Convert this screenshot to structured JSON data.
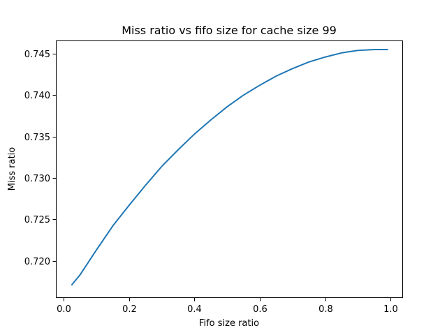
{
  "chart_data": {
    "type": "line",
    "title": "Miss ratio vs fifo size for cache size 99",
    "xlabel": "Fifo size ratio",
    "ylabel": "Miss ratio",
    "xlim": [
      -0.024,
      1.038
    ],
    "ylim": [
      0.7155,
      0.7466
    ],
    "xticks": [
      {
        "value": 0.0,
        "label": "0.0"
      },
      {
        "value": 0.2,
        "label": "0.2"
      },
      {
        "value": 0.4,
        "label": "0.4"
      },
      {
        "value": 0.6,
        "label": "0.6"
      },
      {
        "value": 0.8,
        "label": "0.8"
      },
      {
        "value": 1.0,
        "label": "1.0"
      }
    ],
    "yticks": [
      {
        "value": 0.72,
        "label": "0.720"
      },
      {
        "value": 0.725,
        "label": "0.725"
      },
      {
        "value": 0.73,
        "label": "0.730"
      },
      {
        "value": 0.735,
        "label": "0.735"
      },
      {
        "value": 0.74,
        "label": "0.740"
      },
      {
        "value": 0.745,
        "label": "0.745"
      }
    ],
    "grid": false,
    "series": [
      {
        "color": "#1f77b4",
        "x": [
          0.025,
          0.05,
          0.1,
          0.15,
          0.2,
          0.25,
          0.3,
          0.35,
          0.4,
          0.45,
          0.5,
          0.55,
          0.6,
          0.65,
          0.7,
          0.75,
          0.8,
          0.85,
          0.9,
          0.95,
          0.99
        ],
        "y": [
          0.7171,
          0.7183,
          0.7213,
          0.7242,
          0.7267,
          0.7291,
          0.7314,
          0.7334,
          0.7353,
          0.737,
          0.7386,
          0.74,
          0.7412,
          0.7423,
          0.7432,
          0.744,
          0.7446,
          0.7451,
          0.7454,
          0.7455,
          0.7455
        ]
      }
    ]
  }
}
